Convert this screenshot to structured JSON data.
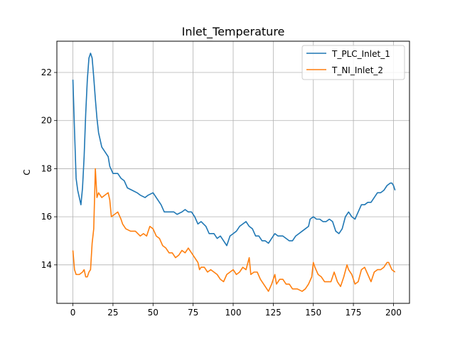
{
  "chart_data": {
    "type": "line",
    "title": "Inlet_Temperature",
    "xlabel": "",
    "ylabel": "C",
    "xlim": [
      -10,
      210
    ],
    "ylim": [
      12.4,
      23.3
    ],
    "xticks": [
      0,
      25,
      50,
      75,
      100,
      125,
      150,
      175,
      200
    ],
    "yticks": [
      14,
      16,
      18,
      20,
      22
    ],
    "grid": true,
    "legend_position": "top-right",
    "series": [
      {
        "name": "T_PLC_Inlet_1",
        "color": "#1f77b4",
        "points": [
          [
            0,
            21.7
          ],
          [
            1,
            19.6
          ],
          [
            2,
            17.6
          ],
          [
            3,
            17.1
          ],
          [
            4,
            16.8
          ],
          [
            5,
            16.5
          ],
          [
            6,
            17.2
          ],
          [
            7,
            18.5
          ],
          [
            8,
            20.3
          ],
          [
            9,
            21.7
          ],
          [
            10,
            22.6
          ],
          [
            11,
            22.8
          ],
          [
            12,
            22.6
          ],
          [
            13,
            21.8
          ],
          [
            14,
            20.9
          ],
          [
            15,
            20.1
          ],
          [
            16,
            19.5
          ],
          [
            17,
            19.2
          ],
          [
            18,
            18.9
          ],
          [
            20,
            18.7
          ],
          [
            22,
            18.5
          ],
          [
            23,
            18.1
          ],
          [
            25,
            17.8
          ],
          [
            28,
            17.8
          ],
          [
            30,
            17.6
          ],
          [
            32,
            17.5
          ],
          [
            34,
            17.2
          ],
          [
            37,
            17.1
          ],
          [
            40,
            17.0
          ],
          [
            42,
            16.9
          ],
          [
            45,
            16.8
          ],
          [
            47,
            16.9
          ],
          [
            50,
            17.0
          ],
          [
            52,
            16.8
          ],
          [
            55,
            16.5
          ],
          [
            57,
            16.2
          ],
          [
            60,
            16.2
          ],
          [
            63,
            16.2
          ],
          [
            65,
            16.1
          ],
          [
            68,
            16.2
          ],
          [
            70,
            16.3
          ],
          [
            72,
            16.2
          ],
          [
            74,
            16.2
          ],
          [
            76,
            16.0
          ],
          [
            78,
            15.7
          ],
          [
            80,
            15.8
          ],
          [
            83,
            15.6
          ],
          [
            85,
            15.3
          ],
          [
            88,
            15.3
          ],
          [
            90,
            15.1
          ],
          [
            92,
            15.2
          ],
          [
            94,
            15.0
          ],
          [
            96,
            14.8
          ],
          [
            98,
            15.2
          ],
          [
            100,
            15.3
          ],
          [
            102,
            15.4
          ],
          [
            104,
            15.6
          ],
          [
            106,
            15.7
          ],
          [
            108,
            15.8
          ],
          [
            110,
            15.6
          ],
          [
            112,
            15.5
          ],
          [
            114,
            15.2
          ],
          [
            116,
            15.2
          ],
          [
            118,
            15.0
          ],
          [
            120,
            15.0
          ],
          [
            122,
            14.9
          ],
          [
            124,
            15.1
          ],
          [
            126,
            15.3
          ],
          [
            128,
            15.2
          ],
          [
            131,
            15.2
          ],
          [
            133,
            15.1
          ],
          [
            135,
            15.0
          ],
          [
            137,
            15.0
          ],
          [
            139,
            15.2
          ],
          [
            141,
            15.3
          ],
          [
            143,
            15.4
          ],
          [
            145,
            15.5
          ],
          [
            147,
            15.6
          ],
          [
            148,
            15.9
          ],
          [
            150,
            16.0
          ],
          [
            152,
            15.9
          ],
          [
            154,
            15.9
          ],
          [
            156,
            15.8
          ],
          [
            158,
            15.8
          ],
          [
            160,
            15.9
          ],
          [
            162,
            15.8
          ],
          [
            164,
            15.4
          ],
          [
            166,
            15.3
          ],
          [
            168,
            15.5
          ],
          [
            170,
            16.0
          ],
          [
            172,
            16.2
          ],
          [
            174,
            16.0
          ],
          [
            176,
            15.9
          ],
          [
            178,
            16.2
          ],
          [
            180,
            16.5
          ],
          [
            182,
            16.5
          ],
          [
            184,
            16.6
          ],
          [
            186,
            16.6
          ],
          [
            188,
            16.8
          ],
          [
            190,
            17.0
          ],
          [
            192,
            17.0
          ],
          [
            194,
            17.1
          ],
          [
            196,
            17.3
          ],
          [
            198,
            17.4
          ],
          [
            199,
            17.4
          ],
          [
            200,
            17.3
          ],
          [
            201,
            17.1
          ]
        ]
      },
      {
        "name": "T_NI_Inlet_2",
        "color": "#ff7f0e",
        "points": [
          [
            0,
            14.6
          ],
          [
            1,
            13.8
          ],
          [
            2,
            13.6
          ],
          [
            4,
            13.6
          ],
          [
            6,
            13.7
          ],
          [
            7,
            13.8
          ],
          [
            8,
            13.5
          ],
          [
            9,
            13.5
          ],
          [
            10,
            13.7
          ],
          [
            11,
            13.8
          ],
          [
            12,
            14.9
          ],
          [
            13,
            15.5
          ],
          [
            14,
            18.0
          ],
          [
            15,
            16.8
          ],
          [
            16,
            17.0
          ],
          [
            18,
            16.8
          ],
          [
            20,
            16.9
          ],
          [
            22,
            17.0
          ],
          [
            23,
            16.7
          ],
          [
            24,
            16.0
          ],
          [
            26,
            16.1
          ],
          [
            28,
            16.2
          ],
          [
            30,
            15.9
          ],
          [
            31,
            15.7
          ],
          [
            33,
            15.5
          ],
          [
            36,
            15.4
          ],
          [
            39,
            15.4
          ],
          [
            42,
            15.2
          ],
          [
            44,
            15.3
          ],
          [
            46,
            15.2
          ],
          [
            48,
            15.6
          ],
          [
            50,
            15.5
          ],
          [
            52,
            15.2
          ],
          [
            54,
            15.1
          ],
          [
            56,
            14.8
          ],
          [
            58,
            14.7
          ],
          [
            60,
            14.5
          ],
          [
            62,
            14.5
          ],
          [
            64,
            14.3
          ],
          [
            66,
            14.4
          ],
          [
            68,
            14.6
          ],
          [
            70,
            14.5
          ],
          [
            72,
            14.7
          ],
          [
            74,
            14.5
          ],
          [
            76,
            14.3
          ],
          [
            78,
            14.1
          ],
          [
            79,
            13.8
          ],
          [
            80,
            13.9
          ],
          [
            82,
            13.9
          ],
          [
            84,
            13.7
          ],
          [
            86,
            13.8
          ],
          [
            88,
            13.7
          ],
          [
            90,
            13.6
          ],
          [
            92,
            13.4
          ],
          [
            94,
            13.3
          ],
          [
            96,
            13.6
          ],
          [
            98,
            13.7
          ],
          [
            100,
            13.8
          ],
          [
            102,
            13.6
          ],
          [
            104,
            13.7
          ],
          [
            106,
            13.9
          ],
          [
            108,
            13.8
          ],
          [
            110,
            14.3
          ],
          [
            111,
            13.6
          ],
          [
            113,
            13.7
          ],
          [
            115,
            13.7
          ],
          [
            117,
            13.4
          ],
          [
            118,
            13.3
          ],
          [
            120,
            13.1
          ],
          [
            122,
            12.9
          ],
          [
            124,
            13.2
          ],
          [
            126,
            13.6
          ],
          [
            127,
            13.2
          ],
          [
            129,
            13.4
          ],
          [
            131,
            13.4
          ],
          [
            133,
            13.2
          ],
          [
            135,
            13.2
          ],
          [
            137,
            13.0
          ],
          [
            140,
            13.0
          ],
          [
            143,
            12.9
          ],
          [
            145,
            13.0
          ],
          [
            147,
            13.2
          ],
          [
            149,
            13.5
          ],
          [
            150,
            14.1
          ],
          [
            151,
            13.9
          ],
          [
            153,
            13.6
          ],
          [
            155,
            13.5
          ],
          [
            157,
            13.3
          ],
          [
            159,
            13.3
          ],
          [
            161,
            13.3
          ],
          [
            163,
            13.7
          ],
          [
            165,
            13.3
          ],
          [
            167,
            13.1
          ],
          [
            169,
            13.5
          ],
          [
            171,
            14.0
          ],
          [
            172,
            13.8
          ],
          [
            174,
            13.6
          ],
          [
            176,
            13.2
          ],
          [
            178,
            13.3
          ],
          [
            180,
            13.8
          ],
          [
            182,
            13.9
          ],
          [
            184,
            13.6
          ],
          [
            186,
            13.3
          ],
          [
            188,
            13.7
          ],
          [
            190,
            13.8
          ],
          [
            192,
            13.8
          ],
          [
            194,
            13.9
          ],
          [
            196,
            14.1
          ],
          [
            197,
            14.1
          ],
          [
            199,
            13.8
          ],
          [
            201,
            13.7
          ]
        ]
      }
    ]
  }
}
